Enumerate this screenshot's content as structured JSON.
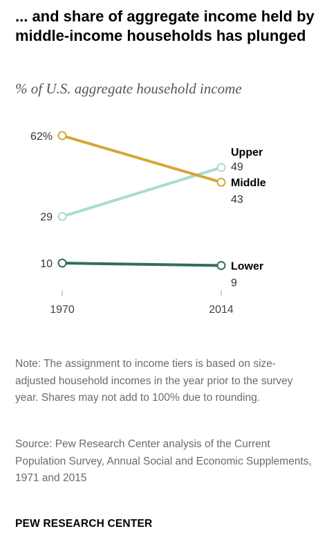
{
  "title": "... and share of aggregate income held by middle-income households has plunged",
  "subtitle": "% of U.S. aggregate household income",
  "chart_data": {
    "type": "line",
    "x": [
      "1970",
      "2014"
    ],
    "ylim": [
      0,
      70
    ],
    "series": [
      {
        "name": "Upper",
        "values": [
          29,
          49
        ],
        "start_label": "29",
        "end_label": "49",
        "color": "#a8dad3"
      },
      {
        "name": "Middle",
        "values": [
          62,
          43
        ],
        "start_label": "62%",
        "end_label": "43",
        "color": "#d4a835"
      },
      {
        "name": "Lower",
        "values": [
          10,
          9
        ],
        "start_label": "10",
        "end_label": "9",
        "color": "#2e6e5a"
      }
    ],
    "grid": false,
    "legend": "direct labels at right end"
  },
  "note": "Note: The assignment to income tiers is based on size-adjusted household incomes in the year prior to the survey year. Shares may not add to 100% due to rounding.",
  "source": "Source: Pew Research Center analysis of the Current Population Survey, Annual Social and Economic Supplements, 1971 and 2015",
  "brand": "PEW RESEARCH CENTER"
}
